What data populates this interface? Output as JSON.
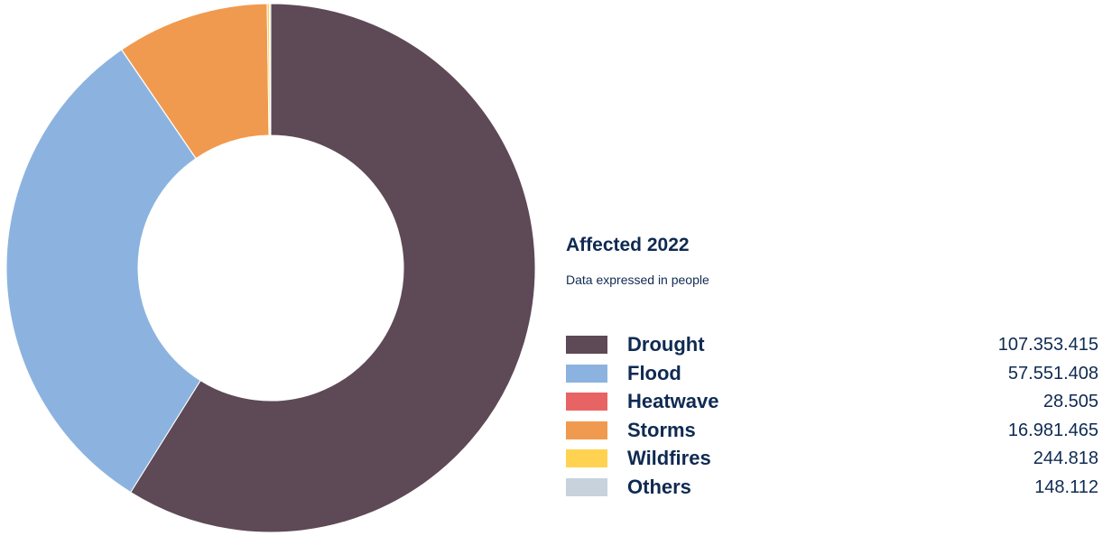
{
  "chart_data": {
    "type": "pie",
    "variant": "donut",
    "title": "Affected 2022",
    "subtitle": "Data expressed in people",
    "categories": [
      "Drought",
      "Flood",
      "Heatwave",
      "Storms",
      "Wildfires",
      "Others"
    ],
    "values": [
      107353415,
      57551408,
      28505,
      16981465,
      244818,
      148112
    ],
    "value_labels": [
      "107.353.415",
      "57.551.408",
      "28.505",
      "16.981.465",
      "244.818",
      "148.112"
    ],
    "colors": [
      "#5e4956",
      "#8cb3df",
      "#e86464",
      "#f09a50",
      "#ffd351",
      "#c8d2dc"
    ],
    "legend_position": "right"
  }
}
